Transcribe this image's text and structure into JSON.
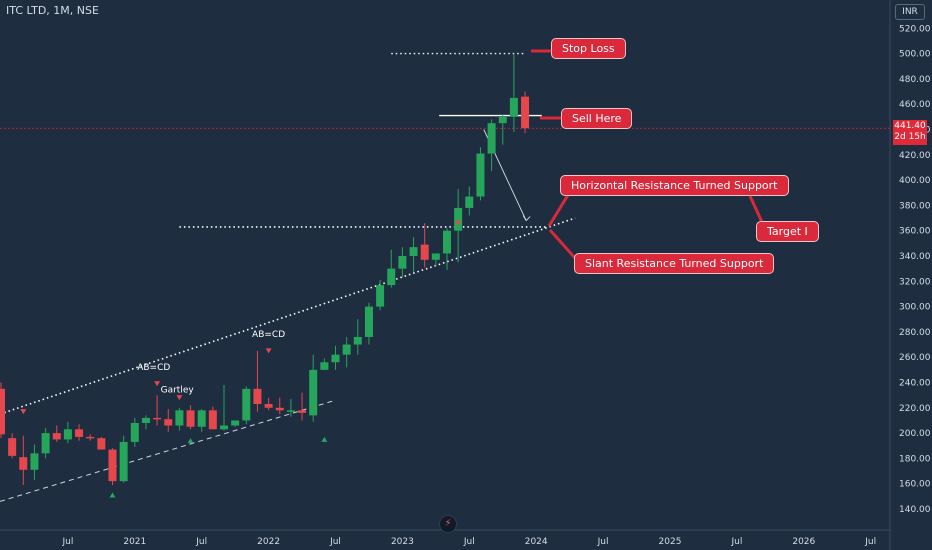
{
  "header": {
    "title": "ITC LTD, 1M, NSE",
    "currency": "INR"
  },
  "price_tag": {
    "value": "441.40",
    "countdown": "2d 15h"
  },
  "colors": {
    "background": "#1e2d40",
    "up": "#26a65b",
    "down": "#e5474d",
    "annotation": "#d9293b",
    "tag": "#e02a3a"
  },
  "annotations": {
    "stop_loss": "Stop Loss",
    "sell_here": "Sell Here",
    "horizontal_support": "Horizontal Resistance Turned Support",
    "target": "Target I",
    "slant_support": "Slant Resistance Turned Support"
  },
  "pattern_labels": [
    "AB=CD",
    "Gartley",
    "AB=CD"
  ],
  "chart_data": {
    "type": "candlestick",
    "title": "ITC LTD, 1M, NSE",
    "ylim": [
      125,
      530
    ],
    "y_ticks": [
      140,
      160,
      180,
      200,
      220,
      240,
      260,
      280,
      300,
      320,
      340,
      360,
      380,
      400,
      420,
      440,
      460,
      480,
      500,
      520
    ],
    "x_ticks": [
      "Jul",
      "2021",
      "Jul",
      "2022",
      "Jul",
      "2023",
      "Jul",
      "2024",
      "Jul",
      "2025",
      "Jul",
      "2026",
      "Jul"
    ],
    "grid": false,
    "candles": [
      {
        "date": "2020-01",
        "open": 235,
        "high": 240,
        "low": 196,
        "close": 199
      },
      {
        "date": "2020-02",
        "open": 196,
        "high": 200,
        "low": 180,
        "close": 182
      },
      {
        "date": "2020-03",
        "open": 181,
        "high": 198,
        "low": 159,
        "close": 171
      },
      {
        "date": "2020-04",
        "open": 171,
        "high": 191,
        "low": 163,
        "close": 184
      },
      {
        "date": "2020-05",
        "open": 184,
        "high": 204,
        "low": 180,
        "close": 200
      },
      {
        "date": "2020-06",
        "open": 200,
        "high": 206,
        "low": 193,
        "close": 195
      },
      {
        "date": "2020-07",
        "open": 195,
        "high": 209,
        "low": 192,
        "close": 203
      },
      {
        "date": "2020-08",
        "open": 203,
        "high": 207,
        "low": 194,
        "close": 197
      },
      {
        "date": "2020-09",
        "open": 197,
        "high": 199,
        "low": 194,
        "close": 196
      },
      {
        "date": "2020-10",
        "open": 196,
        "high": 197,
        "low": 187,
        "close": 187
      },
      {
        "date": "2020-11",
        "open": 187,
        "high": 188,
        "low": 159,
        "close": 162
      },
      {
        "date": "2020-12",
        "open": 162,
        "high": 198,
        "low": 161,
        "close": 193
      },
      {
        "date": "2021-01",
        "open": 193,
        "high": 212,
        "low": 189,
        "close": 208
      },
      {
        "date": "2021-02",
        "open": 208,
        "high": 214,
        "low": 203,
        "close": 212
      },
      {
        "date": "2021-03",
        "open": 212,
        "high": 230,
        "low": 206,
        "close": 211
      },
      {
        "date": "2021-04",
        "open": 211,
        "high": 219,
        "low": 201,
        "close": 206
      },
      {
        "date": "2021-05",
        "open": 206,
        "high": 220,
        "low": 202,
        "close": 218
      },
      {
        "date": "2021-06",
        "open": 218,
        "high": 222,
        "low": 203,
        "close": 205
      },
      {
        "date": "2021-07",
        "open": 205,
        "high": 219,
        "low": 201,
        "close": 218
      },
      {
        "date": "2021-08",
        "open": 218,
        "high": 221,
        "low": 203,
        "close": 203
      },
      {
        "date": "2021-09",
        "open": 203,
        "high": 238,
        "low": 202,
        "close": 206
      },
      {
        "date": "2021-10",
        "open": 206,
        "high": 210,
        "low": 205,
        "close": 210
      },
      {
        "date": "2021-11",
        "open": 210,
        "high": 237,
        "low": 207,
        "close": 235
      },
      {
        "date": "2021-12",
        "open": 235,
        "high": 265,
        "low": 217,
        "close": 223
      },
      {
        "date": "2022-01",
        "open": 223,
        "high": 228,
        "low": 218,
        "close": 220
      },
      {
        "date": "2022-02",
        "open": 220,
        "high": 228,
        "low": 215,
        "close": 218
      },
      {
        "date": "2022-03",
        "open": 218,
        "high": 227,
        "low": 213,
        "close": 218
      },
      {
        "date": "2022-04",
        "open": 218,
        "high": 232,
        "low": 210,
        "close": 216
      },
      {
        "date": "2022-05",
        "open": 214,
        "high": 262,
        "low": 209,
        "close": 250
      },
      {
        "date": "2022-06",
        "open": 250,
        "high": 259,
        "low": 250,
        "close": 256
      },
      {
        "date": "2022-07",
        "open": 256,
        "high": 269,
        "low": 250,
        "close": 262
      },
      {
        "date": "2022-08",
        "open": 262,
        "high": 276,
        "low": 252,
        "close": 270
      },
      {
        "date": "2022-09",
        "open": 270,
        "high": 290,
        "low": 262,
        "close": 276
      },
      {
        "date": "2022-10",
        "open": 276,
        "high": 303,
        "low": 270,
        "close": 300
      },
      {
        "date": "2022-11",
        "open": 300,
        "high": 321,
        "low": 297,
        "close": 317
      },
      {
        "date": "2022-12",
        "open": 317,
        "high": 345,
        "low": 315,
        "close": 330
      },
      {
        "date": "2023-01",
        "open": 330,
        "high": 347,
        "low": 323,
        "close": 340
      },
      {
        "date": "2023-02",
        "open": 340,
        "high": 355,
        "low": 327,
        "close": 347
      },
      {
        "date": "2023-03",
        "open": 349,
        "high": 366,
        "low": 331,
        "close": 337
      },
      {
        "date": "2023-04",
        "open": 337,
        "high": 342,
        "low": 332,
        "close": 342
      },
      {
        "date": "2023-05",
        "open": 342,
        "high": 362,
        "low": 329,
        "close": 360
      },
      {
        "date": "2023-06",
        "open": 360,
        "high": 393,
        "low": 335,
        "close": 378
      },
      {
        "date": "2023-07",
        "open": 378,
        "high": 395,
        "low": 372,
        "close": 387
      },
      {
        "date": "2023-08",
        "open": 387,
        "high": 426,
        "low": 384,
        "close": 421
      },
      {
        "date": "2023-09",
        "open": 421,
        "high": 448,
        "low": 407,
        "close": 445
      },
      {
        "date": "2023-10",
        "open": 445,
        "high": 452,
        "low": 428,
        "close": 450
      },
      {
        "date": "2023-11",
        "open": 450,
        "high": 500,
        "low": 438,
        "close": 465
      },
      {
        "date": "2023-12",
        "open": 466,
        "high": 470,
        "low": 437,
        "close": 441
      }
    ]
  }
}
